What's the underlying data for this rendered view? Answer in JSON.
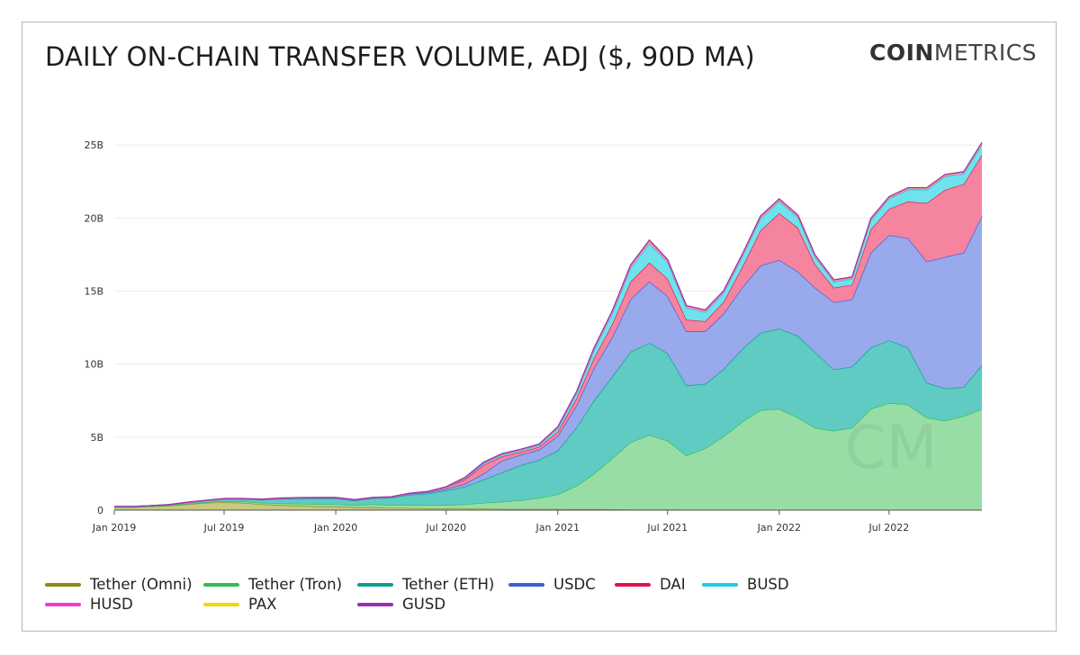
{
  "header": {
    "title": "DAILY ON-CHAIN TRANSFER VOLUME, ADJ ($, 90D MA)",
    "logo_bold": "COIN",
    "logo_light": "METRICS",
    "watermark": "CM"
  },
  "chart_data": {
    "type": "area",
    "stacked": true,
    "title": "DAILY ON-CHAIN TRANSFER VOLUME, ADJ ($, 90D MA)",
    "xlabel": "",
    "ylabel": "",
    "unit": "$ (billions)",
    "x": [
      "2019-01-01",
      "2019-02-01",
      "2019-03-01",
      "2019-04-01",
      "2019-05-01",
      "2019-06-01",
      "2019-07-01",
      "2019-08-01",
      "2019-09-01",
      "2019-10-01",
      "2019-11-01",
      "2019-12-01",
      "2020-01-01",
      "2020-02-01",
      "2020-03-01",
      "2020-04-01",
      "2020-05-01",
      "2020-06-01",
      "2020-07-01",
      "2020-08-01",
      "2020-09-01",
      "2020-10-01",
      "2020-11-01",
      "2020-12-01",
      "2021-01-01",
      "2021-02-01",
      "2021-03-01",
      "2021-04-01",
      "2021-05-01",
      "2021-06-01",
      "2021-07-01",
      "2021-08-01",
      "2021-09-01",
      "2021-10-01",
      "2021-11-01",
      "2021-12-01",
      "2022-01-01",
      "2022-02-01",
      "2022-03-01",
      "2022-04-01",
      "2022-05-01",
      "2022-06-01",
      "2022-07-01",
      "2022-08-01",
      "2022-09-01",
      "2022-10-01",
      "2022-11-01",
      "2022-12-01"
    ],
    "series": [
      {
        "name": "Tether (Omni)",
        "color": "#8a8a12",
        "fill": "#c8c883",
        "values": [
          0.2,
          0.2,
          0.25,
          0.3,
          0.4,
          0.5,
          0.55,
          0.5,
          0.4,
          0.35,
          0.3,
          0.25,
          0.25,
          0.2,
          0.2,
          0.15,
          0.15,
          0.12,
          0.1,
          0.1,
          0.1,
          0.08,
          0.08,
          0.08,
          0.08,
          0.07,
          0.07,
          0.06,
          0.05,
          0.05,
          0.05,
          0.04,
          0.04,
          0.04,
          0.04,
          0.04,
          0.03,
          0.03,
          0.03,
          0.03,
          0.03,
          0.03,
          0.03,
          0.03,
          0.03,
          0.03,
          0.03,
          0.03
        ]
      },
      {
        "name": "Tether (Tron)",
        "color": "#2fbf50",
        "fill": "#99dda6",
        "values": [
          0.0,
          0.0,
          0.0,
          0.02,
          0.04,
          0.05,
          0.08,
          0.1,
          0.1,
          0.12,
          0.14,
          0.15,
          0.15,
          0.15,
          0.2,
          0.2,
          0.2,
          0.22,
          0.25,
          0.3,
          0.4,
          0.5,
          0.6,
          0.75,
          1.0,
          1.6,
          2.4,
          3.5,
          4.6,
          5.1,
          4.7,
          3.7,
          4.2,
          5.0,
          6.0,
          6.8,
          6.9,
          6.3,
          5.6,
          5.4,
          5.6,
          6.9,
          7.3,
          7.2,
          6.3,
          6.1,
          6.4,
          6.9
        ]
      },
      {
        "name": "Tether (ETH)",
        "color": "#0e9e8e",
        "fill": "#5fcbc3",
        "values": [
          0.05,
          0.05,
          0.05,
          0.05,
          0.08,
          0.1,
          0.12,
          0.15,
          0.2,
          0.3,
          0.35,
          0.4,
          0.4,
          0.3,
          0.4,
          0.5,
          0.7,
          0.8,
          1.0,
          1.2,
          1.6,
          2.0,
          2.4,
          2.6,
          3.0,
          4.0,
          5.0,
          5.6,
          6.2,
          6.3,
          6.0,
          4.8,
          4.4,
          4.6,
          5.0,
          5.3,
          5.5,
          5.6,
          5.2,
          4.2,
          4.2,
          4.2,
          4.3,
          3.9,
          2.4,
          2.2,
          2.0,
          3.0
        ]
      },
      {
        "name": "USDC",
        "color": "#3d5dd6",
        "fill": "#98a9ec",
        "values": [
          0.0,
          0.0,
          0.0,
          0.0,
          0.0,
          0.0,
          0.02,
          0.02,
          0.03,
          0.04,
          0.05,
          0.05,
          0.05,
          0.05,
          0.05,
          0.05,
          0.06,
          0.08,
          0.1,
          0.2,
          0.4,
          0.8,
          0.7,
          0.7,
          1.0,
          1.5,
          2.2,
          2.7,
          3.6,
          4.2,
          3.9,
          3.7,
          3.6,
          3.8,
          4.2,
          4.6,
          4.7,
          4.4,
          4.4,
          4.6,
          4.6,
          6.5,
          7.2,
          7.5,
          8.3,
          9.0,
          9.2,
          10.2
        ]
      },
      {
        "name": "DAI",
        "color": "#e0144c",
        "fill": "#f5849f",
        "values": [
          0.0,
          0.0,
          0.0,
          0.0,
          0.0,
          0.0,
          0.0,
          0.0,
          0.0,
          0.0,
          0.0,
          0.0,
          0.0,
          0.0,
          0.0,
          0.0,
          0.02,
          0.05,
          0.1,
          0.3,
          0.6,
          0.3,
          0.2,
          0.2,
          0.3,
          0.5,
          0.7,
          0.9,
          1.2,
          1.3,
          1.2,
          0.8,
          0.7,
          0.8,
          1.4,
          2.4,
          3.2,
          3.0,
          1.6,
          1.0,
          1.0,
          1.6,
          1.8,
          2.5,
          4.0,
          4.6,
          4.7,
          4.2
        ]
      },
      {
        "name": "BUSD",
        "color": "#1ecbe0",
        "fill": "#6ee3ee",
        "values": [
          0.0,
          0.0,
          0.0,
          0.0,
          0.0,
          0.0,
          0.0,
          0.0,
          0.0,
          0.0,
          0.0,
          0.0,
          0.0,
          0.0,
          0.0,
          0.0,
          0.0,
          0.0,
          0.0,
          0.05,
          0.1,
          0.1,
          0.1,
          0.1,
          0.2,
          0.3,
          0.5,
          0.7,
          0.9,
          1.3,
          1.1,
          0.8,
          0.6,
          0.6,
          0.7,
          0.8,
          0.8,
          0.7,
          0.5,
          0.4,
          0.4,
          0.6,
          0.7,
          0.8,
          0.9,
          0.9,
          0.7,
          0.7
        ]
      },
      {
        "name": "HUSD",
        "color": "#f23bd7",
        "fill": "#f7a1ea",
        "values": [
          0.0,
          0.0,
          0.0,
          0.0,
          0.0,
          0.0,
          0.0,
          0.0,
          0.0,
          0.0,
          0.0,
          0.0,
          0.0,
          0.0,
          0.0,
          0.0,
          0.0,
          0.0,
          0.02,
          0.05,
          0.05,
          0.05,
          0.05,
          0.05,
          0.08,
          0.1,
          0.12,
          0.15,
          0.15,
          0.15,
          0.12,
          0.1,
          0.1,
          0.1,
          0.1,
          0.1,
          0.1,
          0.08,
          0.08,
          0.07,
          0.07,
          0.07,
          0.06,
          0.06,
          0.06,
          0.06,
          0.06,
          0.06
        ]
      },
      {
        "name": "PAX",
        "color": "#f2d80a",
        "fill": "#f6e98a",
        "values": [
          0.0,
          0.0,
          0.01,
          0.01,
          0.02,
          0.03,
          0.03,
          0.03,
          0.02,
          0.02,
          0.02,
          0.02,
          0.02,
          0.02,
          0.02,
          0.02,
          0.02,
          0.02,
          0.02,
          0.03,
          0.03,
          0.03,
          0.03,
          0.03,
          0.03,
          0.04,
          0.04,
          0.04,
          0.05,
          0.05,
          0.05,
          0.04,
          0.04,
          0.04,
          0.04,
          0.04,
          0.04,
          0.04,
          0.03,
          0.03,
          0.03,
          0.03,
          0.03,
          0.03,
          0.03,
          0.03,
          0.03,
          0.03
        ]
      },
      {
        "name": "GUSD",
        "color": "#9a2fb4",
        "fill": "#c98bda",
        "values": [
          0.0,
          0.0,
          0.0,
          0.0,
          0.0,
          0.0,
          0.0,
          0.0,
          0.0,
          0.0,
          0.0,
          0.0,
          0.0,
          0.0,
          0.0,
          0.0,
          0.0,
          0.0,
          0.01,
          0.01,
          0.01,
          0.01,
          0.01,
          0.01,
          0.02,
          0.02,
          0.03,
          0.03,
          0.04,
          0.05,
          0.04,
          0.03,
          0.03,
          0.03,
          0.04,
          0.05,
          0.05,
          0.05,
          0.04,
          0.04,
          0.04,
          0.05,
          0.05,
          0.06,
          0.06,
          0.06,
          0.06,
          0.06
        ]
      }
    ],
    "xticks": [
      {
        "label": "Jan 2019",
        "x": "2019-01-01"
      },
      {
        "label": "Jul 2019",
        "x": "2019-07-01"
      },
      {
        "label": "Jan 2020",
        "x": "2020-01-01"
      },
      {
        "label": "Jul 2020",
        "x": "2020-07-01"
      },
      {
        "label": "Jan 2021",
        "x": "2021-01-01"
      },
      {
        "label": "Jul 2021",
        "x": "2021-07-01"
      },
      {
        "label": "Jan 2022",
        "x": "2022-01-01"
      },
      {
        "label": "Jul 2022",
        "x": "2022-07-01"
      }
    ],
    "xlim": [
      "2019-01-01",
      "2022-12-01"
    ],
    "yticks": [
      {
        "label": "0",
        "value": 0
      },
      {
        "label": "5B",
        "value": 5
      },
      {
        "label": "10B",
        "value": 10
      },
      {
        "label": "15B",
        "value": 15
      },
      {
        "label": "20B",
        "value": 20
      },
      {
        "label": "25B",
        "value": 25
      }
    ],
    "ylim": [
      0,
      26
    ],
    "grid": true,
    "legend_position": "bottom-left"
  }
}
